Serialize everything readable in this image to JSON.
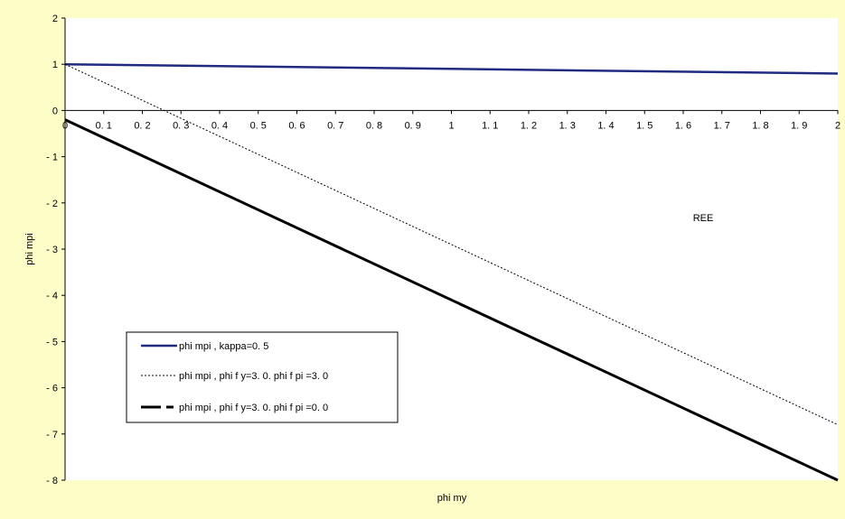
{
  "chart_data": {
    "type": "line",
    "xlabel": "phi my",
    "ylabel": "phi mpi",
    "xlim": [
      0,
      2
    ],
    "ylim": [
      -8,
      2
    ],
    "x_ticks": [
      "0",
      "0. 1",
      "0. 2",
      "0. 3",
      "0. 4",
      "0. 5",
      "0. 6",
      "0. 7",
      "0. 8",
      "0. 9",
      "1",
      "1. 1",
      "1. 2",
      "1. 3",
      "1. 4",
      "1. 5",
      "1. 6",
      "1. 7",
      "1. 8",
      "1. 9",
      "2"
    ],
    "y_ticks": [
      "2",
      "1",
      "0",
      "- 1",
      "- 2",
      "- 3",
      "- 4",
      "- 5",
      "- 6",
      "- 7",
      "- 8"
    ],
    "annotation": "REE",
    "legend_position": "lower-left",
    "series": [
      {
        "name": "phi mpi ,   kappa=0. 5",
        "style": "solid",
        "color": "#1f2a80",
        "x": [
          0,
          2
        ],
        "y": [
          1,
          0.8
        ]
      },
      {
        "name": "phi mpi ,   phi f y=3. 0.   phi f pi =3. 0",
        "style": "dotted",
        "color": "#000000",
        "x": [
          0,
          2
        ],
        "y": [
          1,
          -6.8
        ]
      },
      {
        "name": "phi mpi ,   phi f y=3. 0.   phi f pi =0. 0",
        "style": "solid-thick",
        "color": "#000000",
        "x": [
          0,
          2
        ],
        "y": [
          -0.2,
          -8
        ]
      }
    ]
  }
}
